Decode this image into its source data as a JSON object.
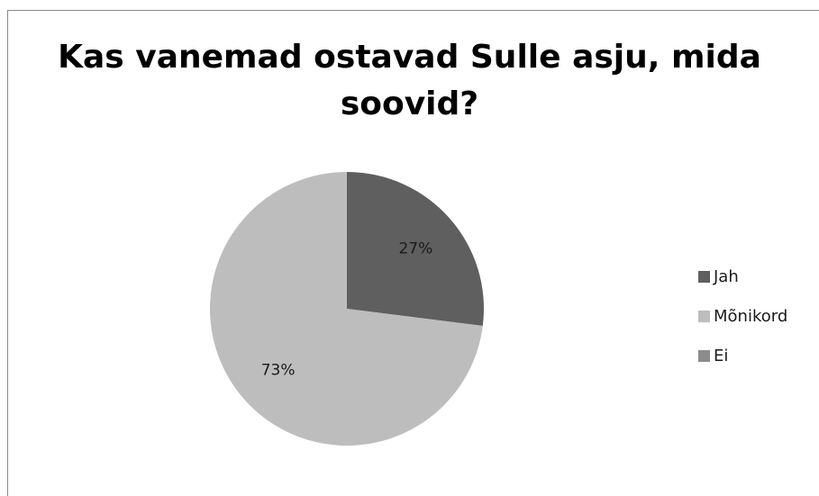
{
  "chart_data": {
    "type": "pie",
    "title": "Kas vanemad ostavad Sulle asju, mida soovid?",
    "title_lines": [
      "Kas vanemad ostavad Sulle asju, mida",
      "soovid?"
    ],
    "categories": [
      "Jah",
      "Mõnikord",
      "Ei"
    ],
    "values": [
      27,
      73,
      0
    ],
    "data_labels": [
      "27%",
      "73%",
      ""
    ],
    "colors": [
      "#5f5f5f",
      "#bdbdbd",
      "#8c8c8c"
    ],
    "legend_position": "right",
    "start_angle": "top, clockwise"
  }
}
